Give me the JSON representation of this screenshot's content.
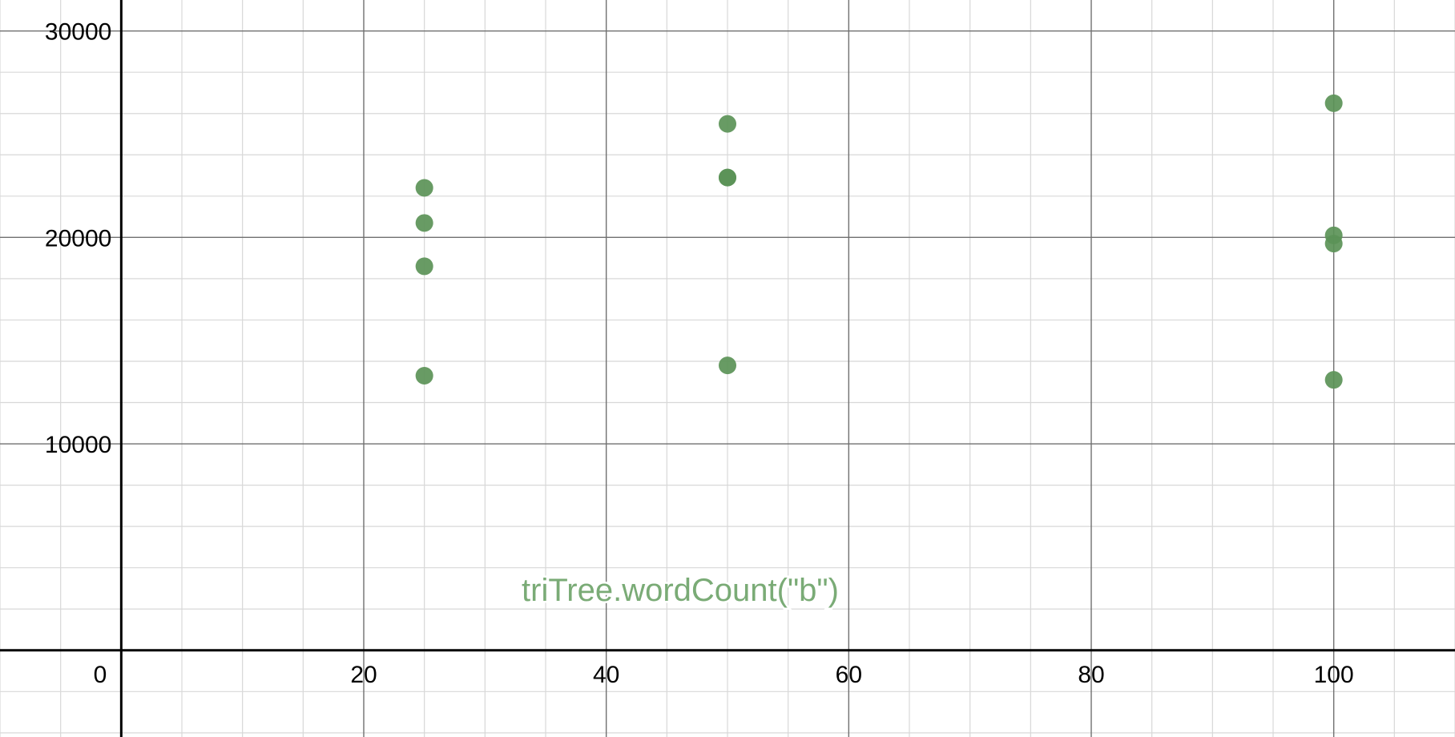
{
  "chart_data": {
    "type": "scatter",
    "title": "",
    "xlabel": "",
    "ylabel": "",
    "xlim": [
      -10,
      110
    ],
    "ylim": [
      -4200,
      31500
    ],
    "grid": true,
    "x_major_ticks": [
      0,
      20,
      40,
      60,
      80,
      100
    ],
    "x_tick_labels": [
      "0",
      "20",
      "40",
      "60",
      "80",
      "100"
    ],
    "y_major_ticks": [
      10000,
      20000,
      30000
    ],
    "y_tick_labels": [
      "10000",
      "20000",
      "30000"
    ],
    "annotation": "triTree.wordCount(\"b\")",
    "colors": {
      "points": "#5b9257",
      "annotation": "#7aab76",
      "axis": "#000000",
      "major_grid": "#707070",
      "minor_grid": "#d8d8d8"
    },
    "series": [
      {
        "points": [
          {
            "x": 25,
            "y": 22400
          },
          {
            "x": 25,
            "y": 20700
          },
          {
            "x": 25,
            "y": 18600
          },
          {
            "x": 25,
            "y": 13300
          },
          {
            "x": 50,
            "y": 25500
          },
          {
            "x": 50,
            "y": 22900
          },
          {
            "x": 50,
            "y": 22900
          },
          {
            "x": 50,
            "y": 13800
          },
          {
            "x": 100,
            "y": 26500
          },
          {
            "x": 100,
            "y": 20100
          },
          {
            "x": 100,
            "y": 19700
          },
          {
            "x": 100,
            "y": 13100
          }
        ]
      }
    ]
  }
}
